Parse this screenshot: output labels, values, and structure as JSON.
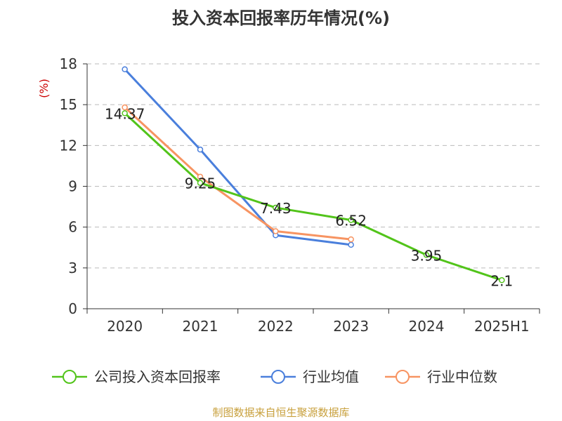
{
  "chart_data": {
    "type": "line",
    "title": "投入资本回报率历年情况(%)",
    "ylabel": "(%)",
    "xlabel": "",
    "categories": [
      "2020",
      "2021",
      "2022",
      "2023",
      "2024",
      "2025H1"
    ],
    "ylim": [
      0,
      18
    ],
    "yticks": [
      0,
      3,
      6,
      9,
      12,
      15,
      18
    ],
    "grid": "horizontal dashed",
    "legend_position": "bottom",
    "series": [
      {
        "name": "公司投入资本回报率",
        "color": "#52c41a",
        "values": [
          14.37,
          9.25,
          7.43,
          6.52,
          3.95,
          2.1
        ],
        "labels": [
          "14.37",
          "9.25",
          "7.43",
          "6.52",
          "3.95",
          "2.1"
        ]
      },
      {
        "name": "行业均值",
        "color": "#4a7fdc",
        "values": [
          17.6,
          11.7,
          5.4,
          4.7,
          null,
          null
        ]
      },
      {
        "name": "行业中位数",
        "color": "#f79462",
        "values": [
          14.8,
          9.7,
          5.7,
          5.1,
          null,
          null
        ]
      }
    ]
  },
  "source_note": "制图数据来自恒生聚源数据库",
  "colors": {
    "title": "#333333",
    "ylabel": "#cc0000",
    "axis": "#333333",
    "grid": "#bbbbbb",
    "source": "#c8a03c"
  }
}
